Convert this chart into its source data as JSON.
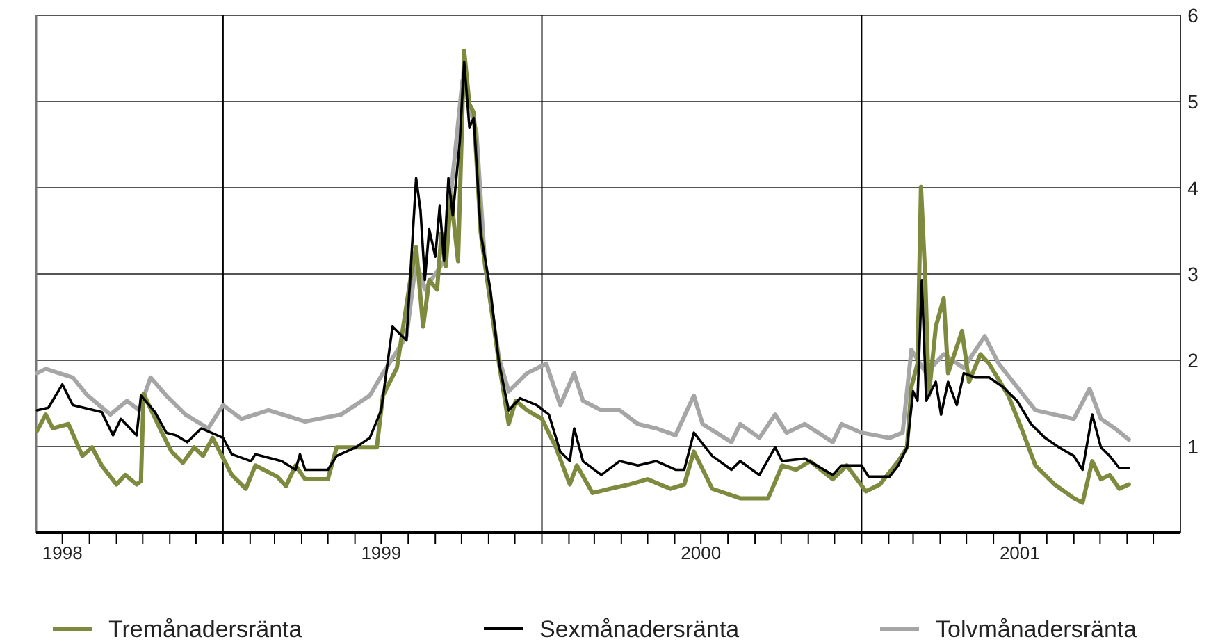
{
  "chart_data": {
    "type": "line",
    "xlim": [
      "1998-06-01",
      "2002-01-01"
    ],
    "ylim": [
      0,
      6
    ],
    "yticks": [
      1,
      2,
      3,
      4,
      5,
      6
    ],
    "grid": "y",
    "legend": "bottom",
    "line_style": "solid",
    "marker": "none",
    "xticks": [
      {
        "value": "1998-07-01",
        "label": "1998"
      },
      {
        "value": "1998-08-01",
        "label": null
      },
      {
        "value": "1998-09-01",
        "label": null
      },
      {
        "value": "1998-10-01",
        "label": null
      },
      {
        "value": "1998-11-01",
        "label": null
      },
      {
        "value": "1998-12-01",
        "label": null
      },
      {
        "value": "1999-01-01",
        "label": null
      },
      {
        "value": "1999-02-01",
        "label": null
      },
      {
        "value": "1999-03-01",
        "label": null
      },
      {
        "value": "1999-04-01",
        "label": null
      },
      {
        "value": "1999-05-01",
        "label": null
      },
      {
        "value": "1999-06-01",
        "label": null
      },
      {
        "value": "1999-07-01",
        "label": "1999"
      },
      {
        "value": "1999-08-01",
        "label": null
      },
      {
        "value": "1999-09-01",
        "label": null
      },
      {
        "value": "1999-10-01",
        "label": null
      },
      {
        "value": "1999-11-01",
        "label": null
      },
      {
        "value": "1999-12-01",
        "label": null
      },
      {
        "value": "2000-01-01",
        "label": null
      },
      {
        "value": "2000-02-01",
        "label": null
      },
      {
        "value": "2000-03-01",
        "label": null
      },
      {
        "value": "2000-04-01",
        "label": null
      },
      {
        "value": "2000-05-01",
        "label": null
      },
      {
        "value": "2000-06-01",
        "label": null
      },
      {
        "value": "2000-07-01",
        "label": "2000"
      },
      {
        "value": "2000-08-01",
        "label": null
      },
      {
        "value": "2000-09-01",
        "label": null
      },
      {
        "value": "2000-10-01",
        "label": null
      },
      {
        "value": "2000-11-01",
        "label": null
      },
      {
        "value": "2000-12-01",
        "label": null
      },
      {
        "value": "2001-01-01",
        "label": null
      },
      {
        "value": "2001-02-01",
        "label": null
      },
      {
        "value": "2001-03-01",
        "label": null
      },
      {
        "value": "2001-04-01",
        "label": null
      },
      {
        "value": "2001-05-01",
        "label": null
      },
      {
        "value": "2001-06-01",
        "label": null
      },
      {
        "value": "2001-07-01",
        "label": "2001"
      },
      {
        "value": "2001-08-01",
        "label": null
      },
      {
        "value": "2001-09-01",
        "label": null
      },
      {
        "value": "2001-10-01",
        "label": null
      },
      {
        "value": "2001-11-01",
        "label": null
      },
      {
        "value": "2001-12-01",
        "label": null
      }
    ],
    "ref_lines": [
      {
        "axis": "x",
        "value": "1999-01-01",
        "color": "#000000"
      },
      {
        "axis": "x",
        "value": "2000-01-01",
        "color": "#000000"
      },
      {
        "axis": "x",
        "value": "2001-01-01",
        "color": "#000000"
      }
    ],
    "series": [
      {
        "name": "Tremånadersränta",
        "color": "#7f8a3e",
        "x": [
          "1998-06-02",
          "1998-06-12",
          "1998-06-20",
          "1998-07-08",
          "1998-07-24",
          "1998-08-04",
          "1998-08-15",
          "1998-09-01",
          "1998-09-11",
          "1998-09-24",
          "1998-09-29",
          "1998-10-02",
          "1998-10-23",
          "1998-11-03",
          "1998-11-16",
          "1998-11-29",
          "1998-12-09",
          "1998-12-20",
          "1999-01-11",
          "1999-01-27",
          "1999-02-07",
          "1999-03-04",
          "1999-03-14",
          "1999-03-25",
          "1999-04-05",
          "1999-05-01",
          "1999-05-11",
          "1999-06-07",
          "1999-06-26",
          "1999-07-03",
          "1999-07-19",
          "1999-08-05",
          "1999-08-10",
          "1999-08-18",
          "1999-08-25",
          "1999-09-03",
          "1999-09-08",
          "1999-09-13",
          "1999-09-19",
          "1999-09-27",
          "1999-10-04",
          "1999-10-10",
          "1999-10-15",
          "1999-10-23",
          "1999-11-13",
          "1999-11-24",
          "1999-12-02",
          "1999-12-15",
          "2000-01-01",
          "2000-01-17",
          "2000-02-02",
          "2000-02-10",
          "2000-02-28",
          "2000-03-19",
          "2000-04-10",
          "2000-05-01",
          "2000-05-27",
          "2000-06-12",
          "2000-06-23",
          "2000-07-14",
          "2000-08-15",
          "2000-09-16",
          "2000-10-02",
          "2000-10-18",
          "2000-11-03",
          "2000-11-29",
          "2000-12-15",
          "2001-01-06",
          "2001-01-22",
          "2001-02-12",
          "2001-02-22",
          "2001-02-27",
          "2001-03-06",
          "2001-03-10",
          "2001-03-15",
          "2001-03-19",
          "2001-03-27",
          "2001-04-05",
          "2001-04-10",
          "2001-04-26",
          "2001-05-04",
          "2001-05-17",
          "2001-05-27",
          "2001-06-18",
          "2001-07-03",
          "2001-07-19",
          "2001-08-10",
          "2001-09-01",
          "2001-09-11",
          "2001-09-22",
          "2001-10-02",
          "2001-10-12",
          "2001-10-23",
          "2001-11-03"
        ],
        "values": [
          1.18,
          1.37,
          1.21,
          1.26,
          0.89,
          0.99,
          0.78,
          0.56,
          0.67,
          0.56,
          0.6,
          1.61,
          1.16,
          0.94,
          0.81,
          0.99,
          0.89,
          1.1,
          0.67,
          0.51,
          0.78,
          0.65,
          0.54,
          0.78,
          0.62,
          0.62,
          0.99,
          0.99,
          0.99,
          1.59,
          1.91,
          3.04,
          3.31,
          2.39,
          2.93,
          2.82,
          3.47,
          3.09,
          3.9,
          3.15,
          5.59,
          4.97,
          4.87,
          3.47,
          1.96,
          1.26,
          1.53,
          1.42,
          1.32,
          0.99,
          0.56,
          0.78,
          0.46,
          0.51,
          0.56,
          0.62,
          0.51,
          0.56,
          0.94,
          0.51,
          0.4,
          0.4,
          0.78,
          0.73,
          0.83,
          0.62,
          0.78,
          0.48,
          0.56,
          0.83,
          0.99,
          1.69,
          1.96,
          4.01,
          2.93,
          1.59,
          2.39,
          2.72,
          1.85,
          2.34,
          1.75,
          2.07,
          1.96,
          1.59,
          1.21,
          0.78,
          0.56,
          0.4,
          0.35,
          0.83,
          0.62,
          0.67,
          0.51,
          0.56
        ]
      },
      {
        "name": "Sexmånadersränta",
        "color": "#000000",
        "x": [
          "1998-06-02",
          "1998-06-15",
          "1998-07-01",
          "1998-07-13",
          "1998-08-15",
          "1998-08-28",
          "1998-09-06",
          "1998-09-24",
          "1998-09-29",
          "1998-10-15",
          "1998-10-28",
          "1998-11-08",
          "1998-11-21",
          "1998-12-07",
          "1999-01-01",
          "1999-01-11",
          "1999-02-02",
          "1999-02-07",
          "1999-03-09",
          "1999-03-25",
          "1999-03-30",
          "1999-04-05",
          "1999-05-01",
          "1999-05-11",
          "1999-06-02",
          "1999-06-18",
          "1999-07-01",
          "1999-07-14",
          "1999-07-30",
          "1999-08-10",
          "1999-08-15",
          "1999-08-20",
          "1999-08-25",
          "1999-09-01",
          "1999-09-06",
          "1999-09-11",
          "1999-09-16",
          "1999-09-21",
          "1999-09-29",
          "1999-10-04",
          "1999-10-10",
          "1999-10-15",
          "1999-10-23",
          "1999-11-03",
          "1999-11-13",
          "1999-11-24",
          "1999-12-07",
          "1999-12-26",
          "2000-01-09",
          "2000-01-22",
          "2000-02-02",
          "2000-02-07",
          "2000-02-17",
          "2000-03-09",
          "2000-03-30",
          "2000-04-20",
          "2000-05-11",
          "2000-06-02",
          "2000-06-12",
          "2000-06-23",
          "2000-07-14",
          "2000-08-05",
          "2000-08-15",
          "2000-09-06",
          "2000-09-24",
          "2000-10-02",
          "2000-10-28",
          "2000-11-29",
          "2000-12-09",
          "2001-01-01",
          "2001-01-09",
          "2001-02-02",
          "2001-02-12",
          "2001-02-22",
          "2001-03-01",
          "2001-03-06",
          "2001-03-11",
          "2001-03-16",
          "2001-03-27",
          "2001-04-02",
          "2001-04-10",
          "2001-04-20",
          "2001-04-28",
          "2001-05-11",
          "2001-05-27",
          "2001-06-12",
          "2001-06-28",
          "2001-07-14",
          "2001-07-30",
          "2001-08-15",
          "2001-09-01",
          "2001-09-11",
          "2001-09-22",
          "2001-10-02",
          "2001-10-12",
          "2001-10-23",
          "2001-11-03"
        ],
        "values": [
          1.42,
          1.45,
          1.72,
          1.48,
          1.4,
          1.13,
          1.32,
          1.13,
          1.59,
          1.4,
          1.16,
          1.13,
          1.05,
          1.21,
          1.1,
          0.91,
          0.83,
          0.91,
          0.83,
          0.73,
          0.91,
          0.73,
          0.73,
          0.89,
          0.99,
          1.1,
          1.42,
          2.39,
          2.23,
          4.11,
          3.74,
          2.93,
          3.52,
          3.2,
          3.79,
          3.15,
          4.11,
          3.68,
          4.54,
          5.46,
          4.7,
          4.81,
          3.47,
          2.82,
          1.96,
          1.42,
          1.56,
          1.48,
          1.37,
          0.94,
          0.83,
          1.21,
          0.83,
          0.67,
          0.83,
          0.78,
          0.83,
          0.73,
          0.73,
          1.16,
          0.89,
          0.73,
          0.83,
          0.67,
          0.99,
          0.83,
          0.86,
          0.67,
          0.78,
          0.78,
          0.65,
          0.65,
          0.78,
          0.99,
          1.64,
          1.53,
          2.93,
          1.53,
          1.75,
          1.37,
          1.75,
          1.48,
          1.85,
          1.8,
          1.8,
          1.69,
          1.53,
          1.26,
          1.1,
          0.99,
          0.89,
          0.73,
          1.37,
          0.99,
          0.89,
          0.75,
          0.75
        ]
      },
      {
        "name": "Tolvmånadersränta",
        "color": "#a6a6a6",
        "x": [
          "1998-06-02",
          "1998-06-12",
          "1998-07-13",
          "1998-07-29",
          "1998-08-25",
          "1998-09-13",
          "1998-09-27",
          "1998-10-10",
          "1998-10-28",
          "1998-11-19",
          "1998-12-15",
          "1999-01-01",
          "1999-01-22",
          "1999-02-22",
          "1999-04-05",
          "1999-05-16",
          "1999-06-18",
          "1999-07-03",
          "1999-07-30",
          "1999-08-10",
          "1999-08-20",
          "1999-09-11",
          "1999-10-02",
          "1999-10-18",
          "1999-10-28",
          "1999-11-13",
          "1999-11-24",
          "1999-12-15",
          "2000-01-06",
          "2000-01-22",
          "2000-02-07",
          "2000-02-17",
          "2000-03-09",
          "2000-03-30",
          "2000-04-20",
          "2000-05-11",
          "2000-06-02",
          "2000-06-23",
          "2000-07-03",
          "2000-08-05",
          "2000-08-15",
          "2000-09-06",
          "2000-09-24",
          "2000-10-07",
          "2000-10-28",
          "2000-11-29",
          "2000-12-09",
          "2001-01-01",
          "2001-02-02",
          "2001-02-17",
          "2001-02-27",
          "2001-03-16",
          "2001-04-05",
          "2001-04-28",
          "2001-05-22",
          "2001-06-07",
          "2001-06-28",
          "2001-07-19",
          "2001-08-10",
          "2001-09-01",
          "2001-09-19",
          "2001-10-02",
          "2001-10-18",
          "2001-11-03"
        ],
        "values": [
          1.85,
          1.9,
          1.8,
          1.6,
          1.37,
          1.53,
          1.42,
          1.8,
          1.59,
          1.37,
          1.21,
          1.48,
          1.32,
          1.42,
          1.29,
          1.37,
          1.59,
          1.85,
          2.28,
          3.15,
          2.82,
          3.15,
          5.24,
          4.65,
          3.09,
          2.02,
          1.64,
          1.85,
          1.96,
          1.48,
          1.85,
          1.53,
          1.42,
          1.42,
          1.26,
          1.21,
          1.13,
          1.59,
          1.26,
          1.05,
          1.26,
          1.1,
          1.37,
          1.16,
          1.26,
          1.05,
          1.26,
          1.16,
          1.1,
          1.16,
          2.12,
          1.85,
          2.07,
          1.91,
          2.28,
          1.96,
          1.69,
          1.42,
          1.37,
          1.32,
          1.67,
          1.32,
          1.21,
          1.08
        ]
      }
    ]
  }
}
